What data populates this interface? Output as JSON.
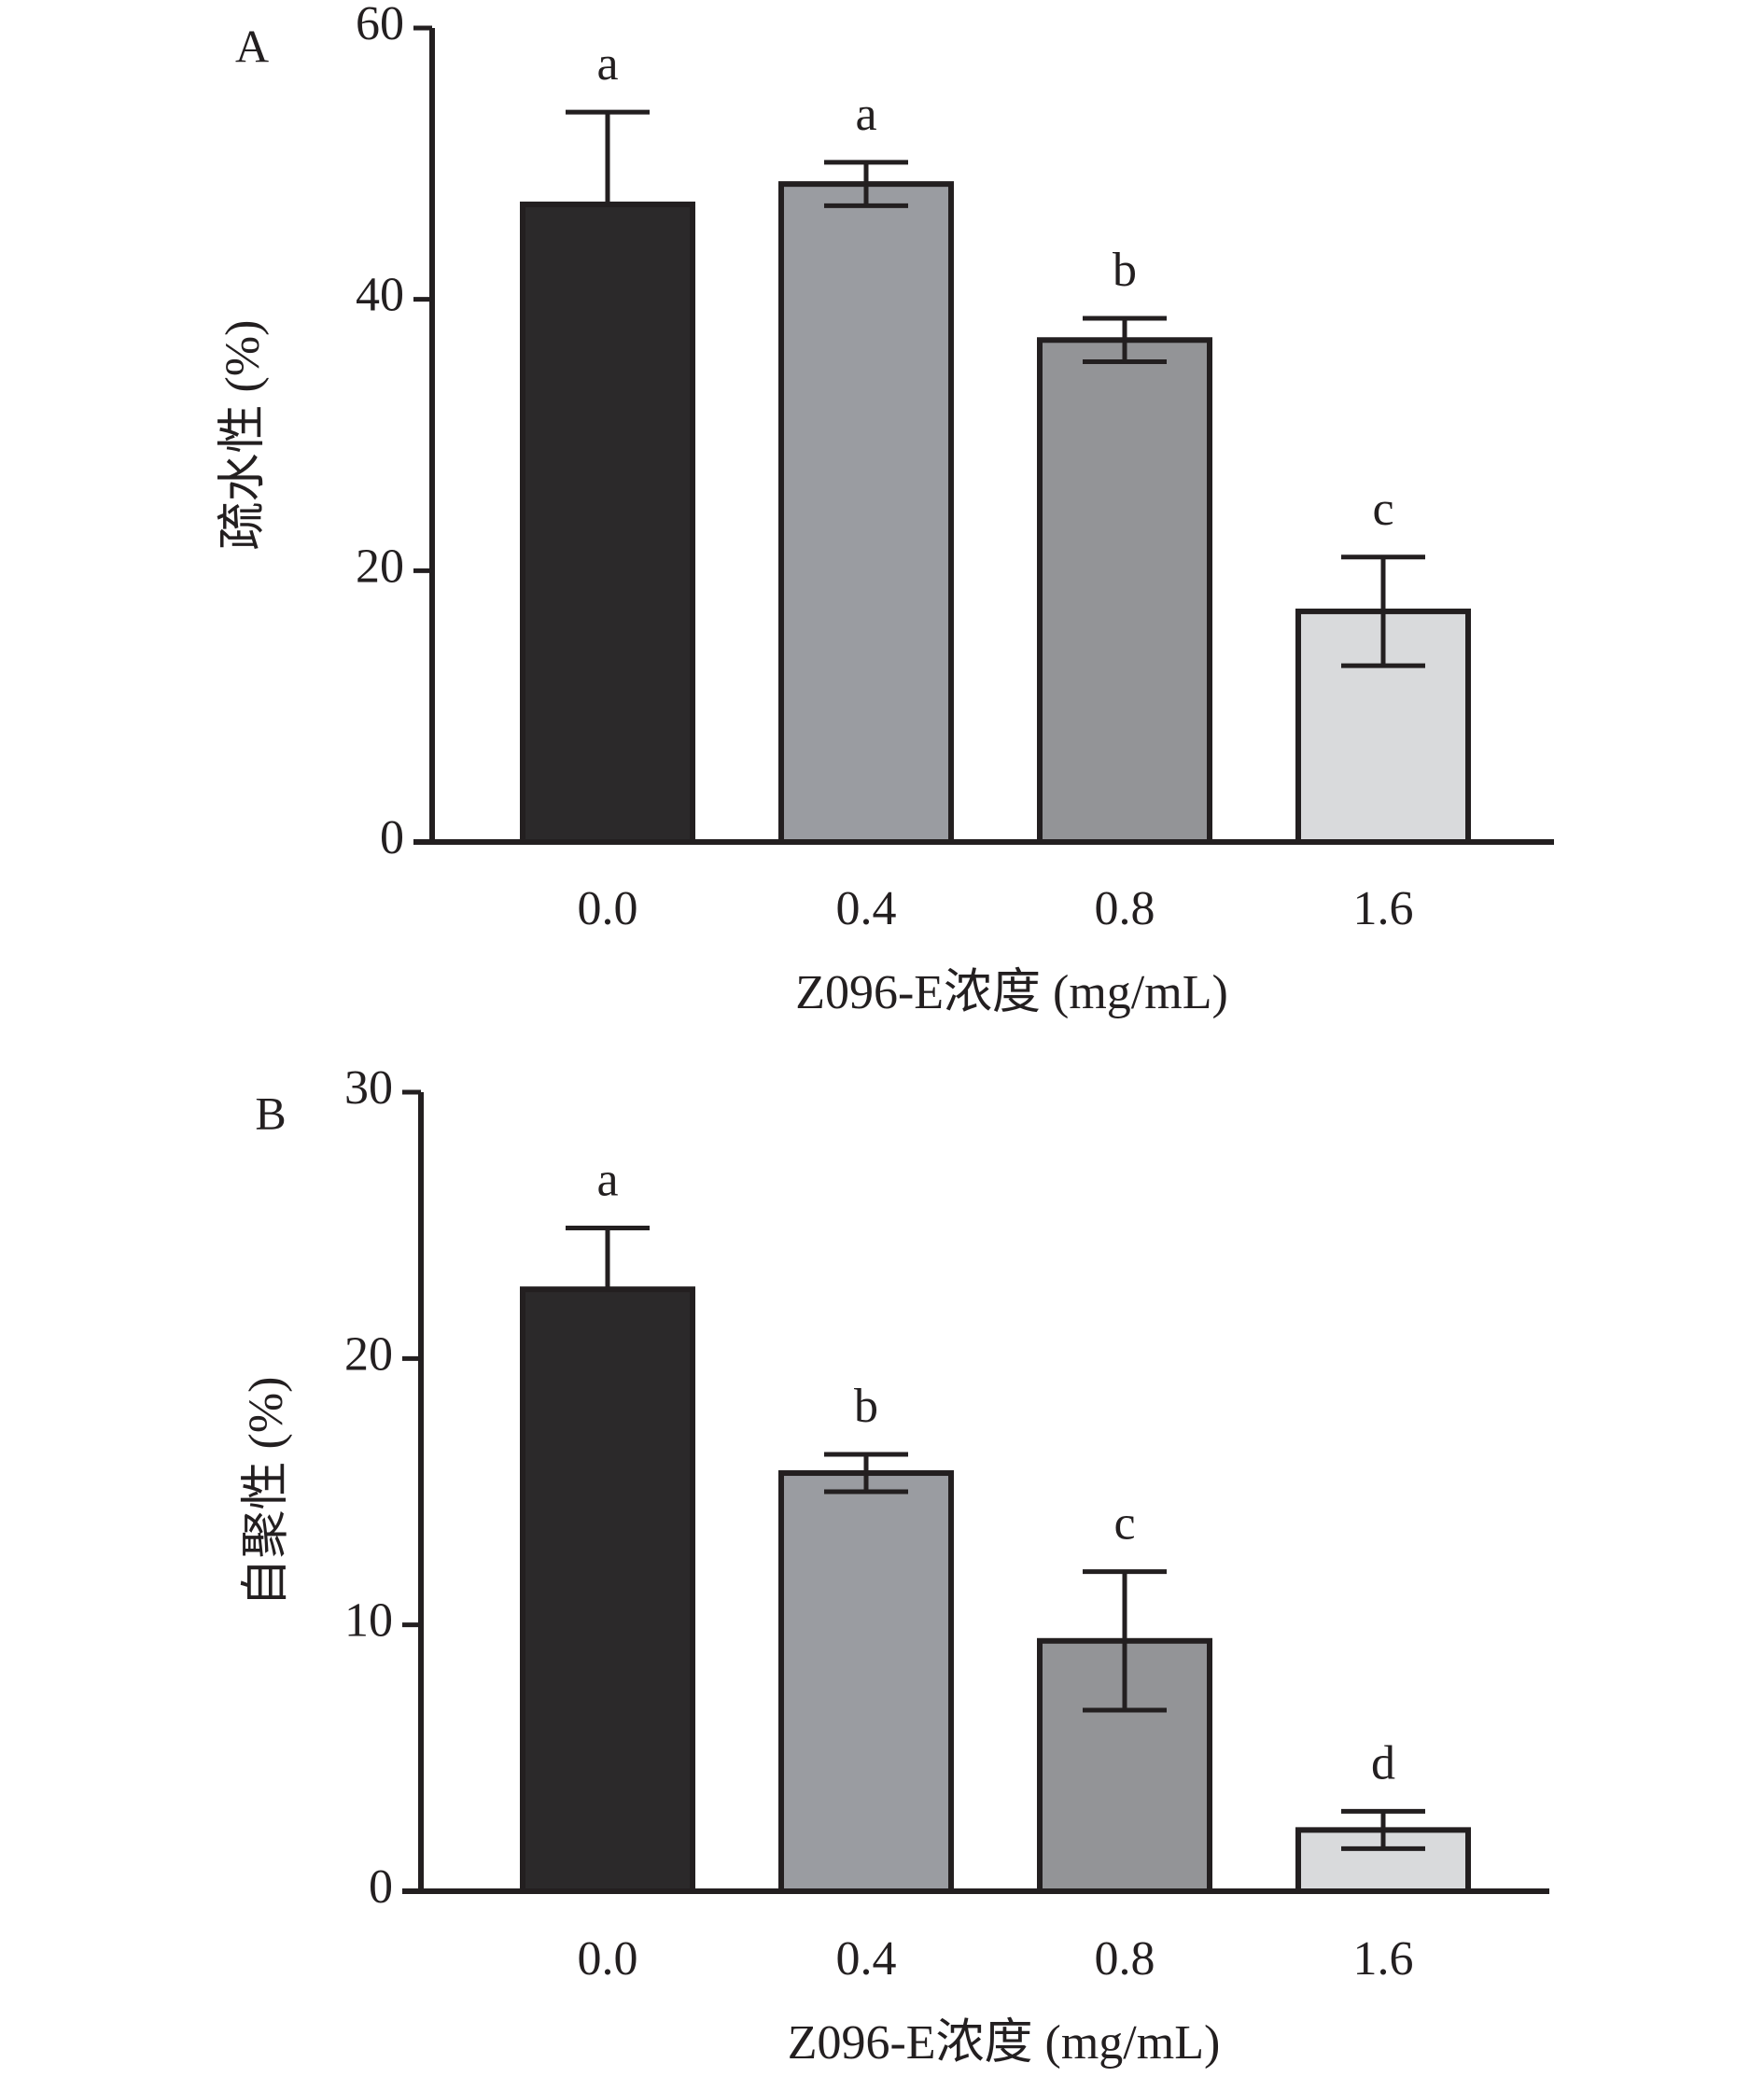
{
  "chart_data": [
    {
      "type": "bar",
      "panel_label": "A",
      "categories": [
        "0.0",
        "0.4",
        "0.8",
        "1.6"
      ],
      "values": [
        47,
        48.5,
        37,
        17
      ],
      "errors": [
        6.8,
        1.6,
        1.6,
        4
      ],
      "significance": [
        "a",
        "a",
        "b",
        "c"
      ],
      "xlabel": "Z096-E浓度 (mg/mL)",
      "ylabel": "疏水性 (%)",
      "ylim": [
        0,
        60
      ],
      "yticks": [
        "0",
        "20",
        "40",
        "60"
      ],
      "bar_colors": [
        "#2b292a",
        "#9a9ca1",
        "#939497",
        "#d9dadc"
      ],
      "grid": false
    },
    {
      "type": "bar",
      "panel_label": "B",
      "categories": [
        "0.0",
        "0.4",
        "0.8",
        "1.6"
      ],
      "values": [
        22.6,
        15.7,
        9.4,
        2.3
      ],
      "errors": [
        2.3,
        0.7,
        2.6,
        0.7
      ],
      "significance": [
        "a",
        "b",
        "c",
        "d"
      ],
      "xlabel": "Z096-E浓度 (mg/mL)",
      "ylabel": "自聚性 (%)",
      "ylim": [
        0,
        30
      ],
      "yticks": [
        "0",
        "10",
        "20",
        "30"
      ],
      "bar_colors": [
        "#2b292a",
        "#9a9ca1",
        "#939497",
        "#d9dadc"
      ],
      "grid": false
    }
  ]
}
